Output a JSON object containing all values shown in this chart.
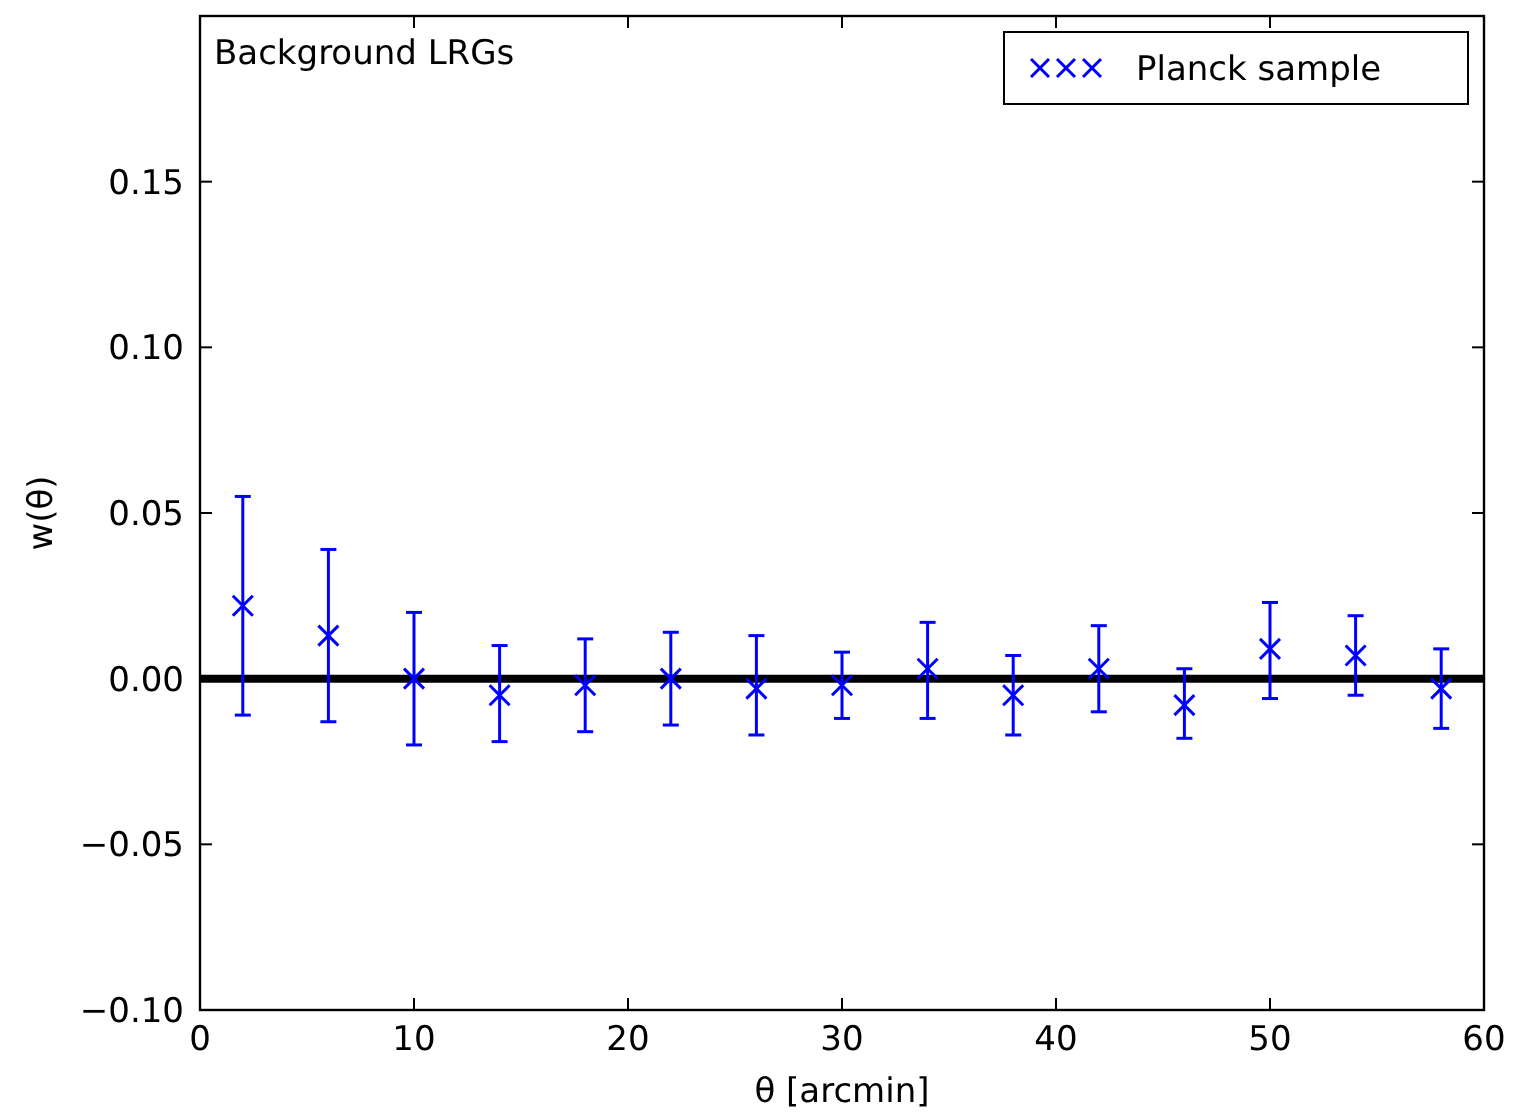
{
  "chart_data": {
    "type": "scatter",
    "xlabel": "θ [arcmin]",
    "ylabel": "w(θ)",
    "annotations": [
      "Background LRGs"
    ],
    "x": [
      2,
      6,
      10,
      14,
      18,
      22,
      26,
      30,
      34,
      38,
      42,
      46,
      50,
      54,
      58
    ],
    "series": [
      {
        "name": "Planck sample",
        "color": "#0000ff",
        "values": [
          0.022,
          0.013,
          0.0,
          -0.005,
          -0.002,
          0.0,
          -0.003,
          -0.002,
          0.003,
          -0.005,
          0.003,
          -0.008,
          0.009,
          0.007,
          -0.003
        ],
        "errors": [
          [
            -0.011,
            0.055
          ],
          [
            -0.013,
            0.039
          ],
          [
            -0.02,
            0.02
          ],
          [
            -0.019,
            0.01
          ],
          [
            -0.016,
            0.012
          ],
          [
            -0.014,
            0.014
          ],
          [
            -0.017,
            0.013
          ],
          [
            -0.012,
            0.008
          ],
          [
            -0.012,
            0.017
          ],
          [
            -0.017,
            0.007
          ],
          [
            -0.01,
            0.016
          ],
          [
            -0.018,
            0.003
          ],
          [
            -0.006,
            0.023
          ],
          [
            -0.005,
            0.019
          ],
          [
            -0.015,
            0.009
          ]
        ]
      }
    ],
    "xlim": [
      0,
      60
    ],
    "xticks": [
      0,
      10,
      20,
      30,
      40,
      50,
      60
    ],
    "ylim": [
      -0.1,
      0.2
    ],
    "yticks": [
      {
        "value": -0.1,
        "label": "−0.10"
      },
      {
        "value": -0.05,
        "label": "−0.05"
      },
      {
        "value": 0,
        "label": "0.00"
      },
      {
        "value": 0.05,
        "label": "0.05"
      },
      {
        "value": 0.1,
        "label": "0.10"
      },
      {
        "value": 0.15,
        "label": "0.15"
      }
    ],
    "ref_lines": [
      {
        "axis": "y",
        "value": 0,
        "color": "#000000",
        "line_style": "solid"
      }
    ],
    "marker": "cross",
    "legend": "top right",
    "grid": false
  }
}
